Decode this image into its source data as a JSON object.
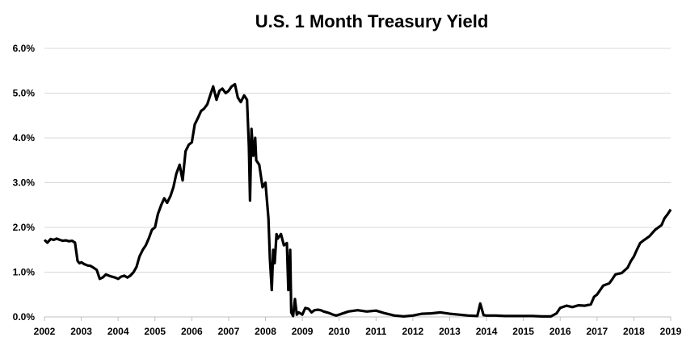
{
  "chart_data": {
    "type": "line",
    "title": "U.S. 1 Month Treasury Yield",
    "xlabel": "",
    "ylabel": "",
    "xlim": [
      2002,
      2019
    ],
    "ylim": [
      0,
      6
    ],
    "grid": true,
    "x_ticks": [
      "2002",
      "2003",
      "2004",
      "2005",
      "2006",
      "2007",
      "2008",
      "2009",
      "2010",
      "2011",
      "2012",
      "2013",
      "2014",
      "2015",
      "2016",
      "2017",
      "2018",
      "2019"
    ],
    "y_ticks": [
      "0.0%",
      "1.0%",
      "2.0%",
      "3.0%",
      "4.0%",
      "5.0%",
      "6.0%"
    ],
    "y_tick_values": [
      0,
      1,
      2,
      3,
      4,
      5,
      6
    ],
    "colors": {
      "line": "#000000",
      "grid": "#d9d9d9",
      "axis": "#bfbfbf"
    },
    "series": [
      {
        "points": [
          [
            2002.0,
            1.72
          ],
          [
            2002.08,
            1.66
          ],
          [
            2002.17,
            1.74
          ],
          [
            2002.25,
            1.72
          ],
          [
            2002.33,
            1.75
          ],
          [
            2002.42,
            1.72
          ],
          [
            2002.5,
            1.7
          ],
          [
            2002.58,
            1.71
          ],
          [
            2002.67,
            1.69
          ],
          [
            2002.75,
            1.7
          ],
          [
            2002.83,
            1.66
          ],
          [
            2002.9,
            1.25
          ],
          [
            2002.95,
            1.2
          ],
          [
            2003.0,
            1.22
          ],
          [
            2003.08,
            1.18
          ],
          [
            2003.17,
            1.15
          ],
          [
            2003.25,
            1.14
          ],
          [
            2003.33,
            1.1
          ],
          [
            2003.42,
            1.05
          ],
          [
            2003.5,
            0.85
          ],
          [
            2003.58,
            0.88
          ],
          [
            2003.67,
            0.95
          ],
          [
            2003.75,
            0.92
          ],
          [
            2003.83,
            0.9
          ],
          [
            2003.92,
            0.88
          ],
          [
            2004.0,
            0.85
          ],
          [
            2004.08,
            0.9
          ],
          [
            2004.17,
            0.92
          ],
          [
            2004.25,
            0.88
          ],
          [
            2004.33,
            0.92
          ],
          [
            2004.42,
            1.0
          ],
          [
            2004.5,
            1.12
          ],
          [
            2004.58,
            1.35
          ],
          [
            2004.67,
            1.5
          ],
          [
            2004.75,
            1.6
          ],
          [
            2004.83,
            1.75
          ],
          [
            2004.92,
            1.95
          ],
          [
            2005.0,
            2.0
          ],
          [
            2005.08,
            2.3
          ],
          [
            2005.17,
            2.5
          ],
          [
            2005.25,
            2.65
          ],
          [
            2005.33,
            2.55
          ],
          [
            2005.42,
            2.7
          ],
          [
            2005.5,
            2.9
          ],
          [
            2005.58,
            3.2
          ],
          [
            2005.67,
            3.4
          ],
          [
            2005.75,
            3.05
          ],
          [
            2005.83,
            3.7
          ],
          [
            2005.92,
            3.85
          ],
          [
            2006.0,
            3.9
          ],
          [
            2006.08,
            4.3
          ],
          [
            2006.17,
            4.45
          ],
          [
            2006.25,
            4.6
          ],
          [
            2006.33,
            4.65
          ],
          [
            2006.42,
            4.75
          ],
          [
            2006.5,
            4.95
          ],
          [
            2006.58,
            5.15
          ],
          [
            2006.67,
            4.85
          ],
          [
            2006.75,
            5.05
          ],
          [
            2006.83,
            5.1
          ],
          [
            2006.92,
            5.0
          ],
          [
            2007.0,
            5.05
          ],
          [
            2007.08,
            5.15
          ],
          [
            2007.17,
            5.2
          ],
          [
            2007.25,
            4.9
          ],
          [
            2007.33,
            4.8
          ],
          [
            2007.42,
            4.95
          ],
          [
            2007.5,
            4.85
          ],
          [
            2007.55,
            3.8
          ],
          [
            2007.58,
            2.6
          ],
          [
            2007.62,
            4.2
          ],
          [
            2007.67,
            3.6
          ],
          [
            2007.72,
            4.0
          ],
          [
            2007.75,
            3.5
          ],
          [
            2007.83,
            3.4
          ],
          [
            2007.92,
            2.9
          ],
          [
            2008.0,
            3.0
          ],
          [
            2008.08,
            2.2
          ],
          [
            2008.12,
            1.3
          ],
          [
            2008.17,
            0.6
          ],
          [
            2008.21,
            1.5
          ],
          [
            2008.25,
            1.2
          ],
          [
            2008.3,
            1.85
          ],
          [
            2008.33,
            1.75
          ],
          [
            2008.42,
            1.85
          ],
          [
            2008.5,
            1.6
          ],
          [
            2008.58,
            1.65
          ],
          [
            2008.62,
            0.6
          ],
          [
            2008.67,
            1.5
          ],
          [
            2008.7,
            0.1
          ],
          [
            2008.75,
            0.02
          ],
          [
            2008.8,
            0.4
          ],
          [
            2008.85,
            0.05
          ],
          [
            2008.9,
            0.1
          ],
          [
            2009.0,
            0.05
          ],
          [
            2009.08,
            0.2
          ],
          [
            2009.17,
            0.18
          ],
          [
            2009.25,
            0.1
          ],
          [
            2009.33,
            0.15
          ],
          [
            2009.42,
            0.16
          ],
          [
            2009.5,
            0.15
          ],
          [
            2009.58,
            0.12
          ],
          [
            2009.67,
            0.1
          ],
          [
            2009.75,
            0.08
          ],
          [
            2009.83,
            0.05
          ],
          [
            2009.92,
            0.03
          ],
          [
            2010.0,
            0.05
          ],
          [
            2010.25,
            0.12
          ],
          [
            2010.5,
            0.15
          ],
          [
            2010.75,
            0.12
          ],
          [
            2011.0,
            0.14
          ],
          [
            2011.25,
            0.08
          ],
          [
            2011.5,
            0.03
          ],
          [
            2011.75,
            0.01
          ],
          [
            2012.0,
            0.03
          ],
          [
            2012.25,
            0.07
          ],
          [
            2012.5,
            0.08
          ],
          [
            2012.75,
            0.1
          ],
          [
            2013.0,
            0.07
          ],
          [
            2013.25,
            0.05
          ],
          [
            2013.5,
            0.03
          ],
          [
            2013.75,
            0.02
          ],
          [
            2013.83,
            0.3
          ],
          [
            2013.92,
            0.04
          ],
          [
            2014.0,
            0.03
          ],
          [
            2014.25,
            0.03
          ],
          [
            2014.5,
            0.02
          ],
          [
            2014.75,
            0.02
          ],
          [
            2015.0,
            0.02
          ],
          [
            2015.25,
            0.02
          ],
          [
            2015.5,
            0.01
          ],
          [
            2015.75,
            0.01
          ],
          [
            2015.9,
            0.08
          ],
          [
            2016.0,
            0.2
          ],
          [
            2016.17,
            0.25
          ],
          [
            2016.33,
            0.22
          ],
          [
            2016.5,
            0.26
          ],
          [
            2016.67,
            0.25
          ],
          [
            2016.83,
            0.28
          ],
          [
            2016.92,
            0.45
          ],
          [
            2017.0,
            0.5
          ],
          [
            2017.17,
            0.7
          ],
          [
            2017.33,
            0.75
          ],
          [
            2017.42,
            0.85
          ],
          [
            2017.5,
            0.95
          ],
          [
            2017.67,
            0.98
          ],
          [
            2017.83,
            1.1
          ],
          [
            2017.92,
            1.25
          ],
          [
            2018.0,
            1.35
          ],
          [
            2018.08,
            1.5
          ],
          [
            2018.17,
            1.65
          ],
          [
            2018.25,
            1.7
          ],
          [
            2018.42,
            1.8
          ],
          [
            2018.58,
            1.95
          ],
          [
            2018.75,
            2.05
          ],
          [
            2018.83,
            2.2
          ],
          [
            2018.92,
            2.3
          ],
          [
            2019.0,
            2.4
          ]
        ]
      }
    ]
  }
}
